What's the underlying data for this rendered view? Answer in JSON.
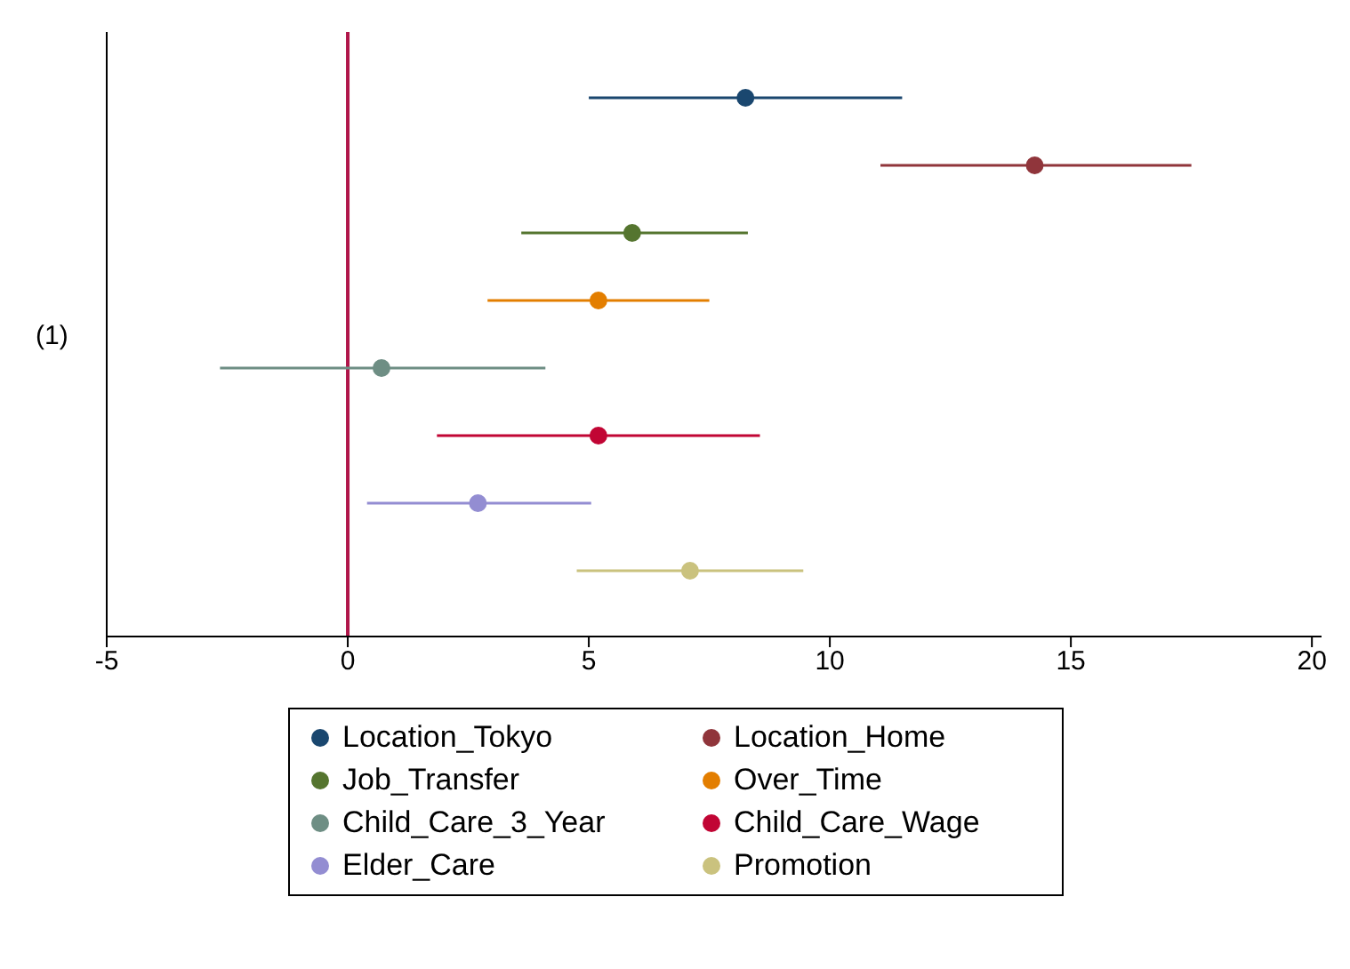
{
  "chart_data": {
    "type": "scatter",
    "orientation": "horizontal",
    "categories": [
      null,
      null,
      null,
      null,
      null,
      null,
      null,
      null
    ],
    "ylabel": "(1)",
    "xlim": [
      -5,
      20.2
    ],
    "xticks": [
      -5,
      0,
      5,
      10,
      15,
      20
    ],
    "series": [
      {
        "name": "Location_Tokyo",
        "color": "#1a476f",
        "values": [
          8.25,
          null,
          null,
          null,
          null,
          null,
          null,
          null
        ],
        "errors": [
          [
            5.0,
            11.5
          ],
          null,
          null,
          null,
          null,
          null,
          null,
          null
        ]
      },
      {
        "name": "Location_Home",
        "color": "#90353b",
        "values": [
          null,
          14.25,
          null,
          null,
          null,
          null,
          null,
          null
        ],
        "errors": [
          null,
          [
            11.05,
            17.5
          ],
          null,
          null,
          null,
          null,
          null,
          null
        ]
      },
      {
        "name": "Job_Transfer",
        "color": "#55752f",
        "values": [
          null,
          null,
          5.9,
          null,
          null,
          null,
          null,
          null
        ],
        "errors": [
          null,
          null,
          [
            3.6,
            8.3
          ],
          null,
          null,
          null,
          null,
          null
        ]
      },
      {
        "name": "Over_Time",
        "color": "#e37e00",
        "values": [
          null,
          null,
          null,
          5.2,
          null,
          null,
          null,
          null
        ],
        "errors": [
          null,
          null,
          null,
          [
            2.9,
            7.5
          ],
          null,
          null,
          null,
          null
        ]
      },
      {
        "name": "Child_Care_3_Year",
        "color": "#6e8e84",
        "values": [
          null,
          null,
          null,
          null,
          0.7,
          null,
          null,
          null
        ],
        "errors": [
          null,
          null,
          null,
          null,
          [
            -2.65,
            4.1
          ],
          null,
          null,
          null
        ]
      },
      {
        "name": "Child_Care_Wage",
        "color": "#c10534",
        "values": [
          null,
          null,
          null,
          null,
          null,
          5.2,
          null,
          null
        ],
        "errors": [
          null,
          null,
          null,
          null,
          null,
          [
            1.85,
            8.55
          ],
          null,
          null
        ]
      },
      {
        "name": "Elder_Care",
        "color": "#938dd2",
        "values": [
          null,
          null,
          null,
          null,
          null,
          null,
          2.7,
          null
        ],
        "errors": [
          null,
          null,
          null,
          null,
          null,
          null,
          [
            0.4,
            5.05
          ],
          null
        ]
      },
      {
        "name": "Promotion",
        "color": "#cac27e",
        "values": [
          null,
          null,
          null,
          null,
          null,
          null,
          null,
          7.1
        ],
        "errors": [
          null,
          null,
          null,
          null,
          null,
          null,
          null,
          [
            4.75,
            9.45
          ]
        ]
      }
    ],
    "ref_lines": [
      {
        "axis": "x",
        "value": 0,
        "color": "#b0164a"
      }
    ],
    "marker": "circle",
    "legend": "bottom"
  }
}
